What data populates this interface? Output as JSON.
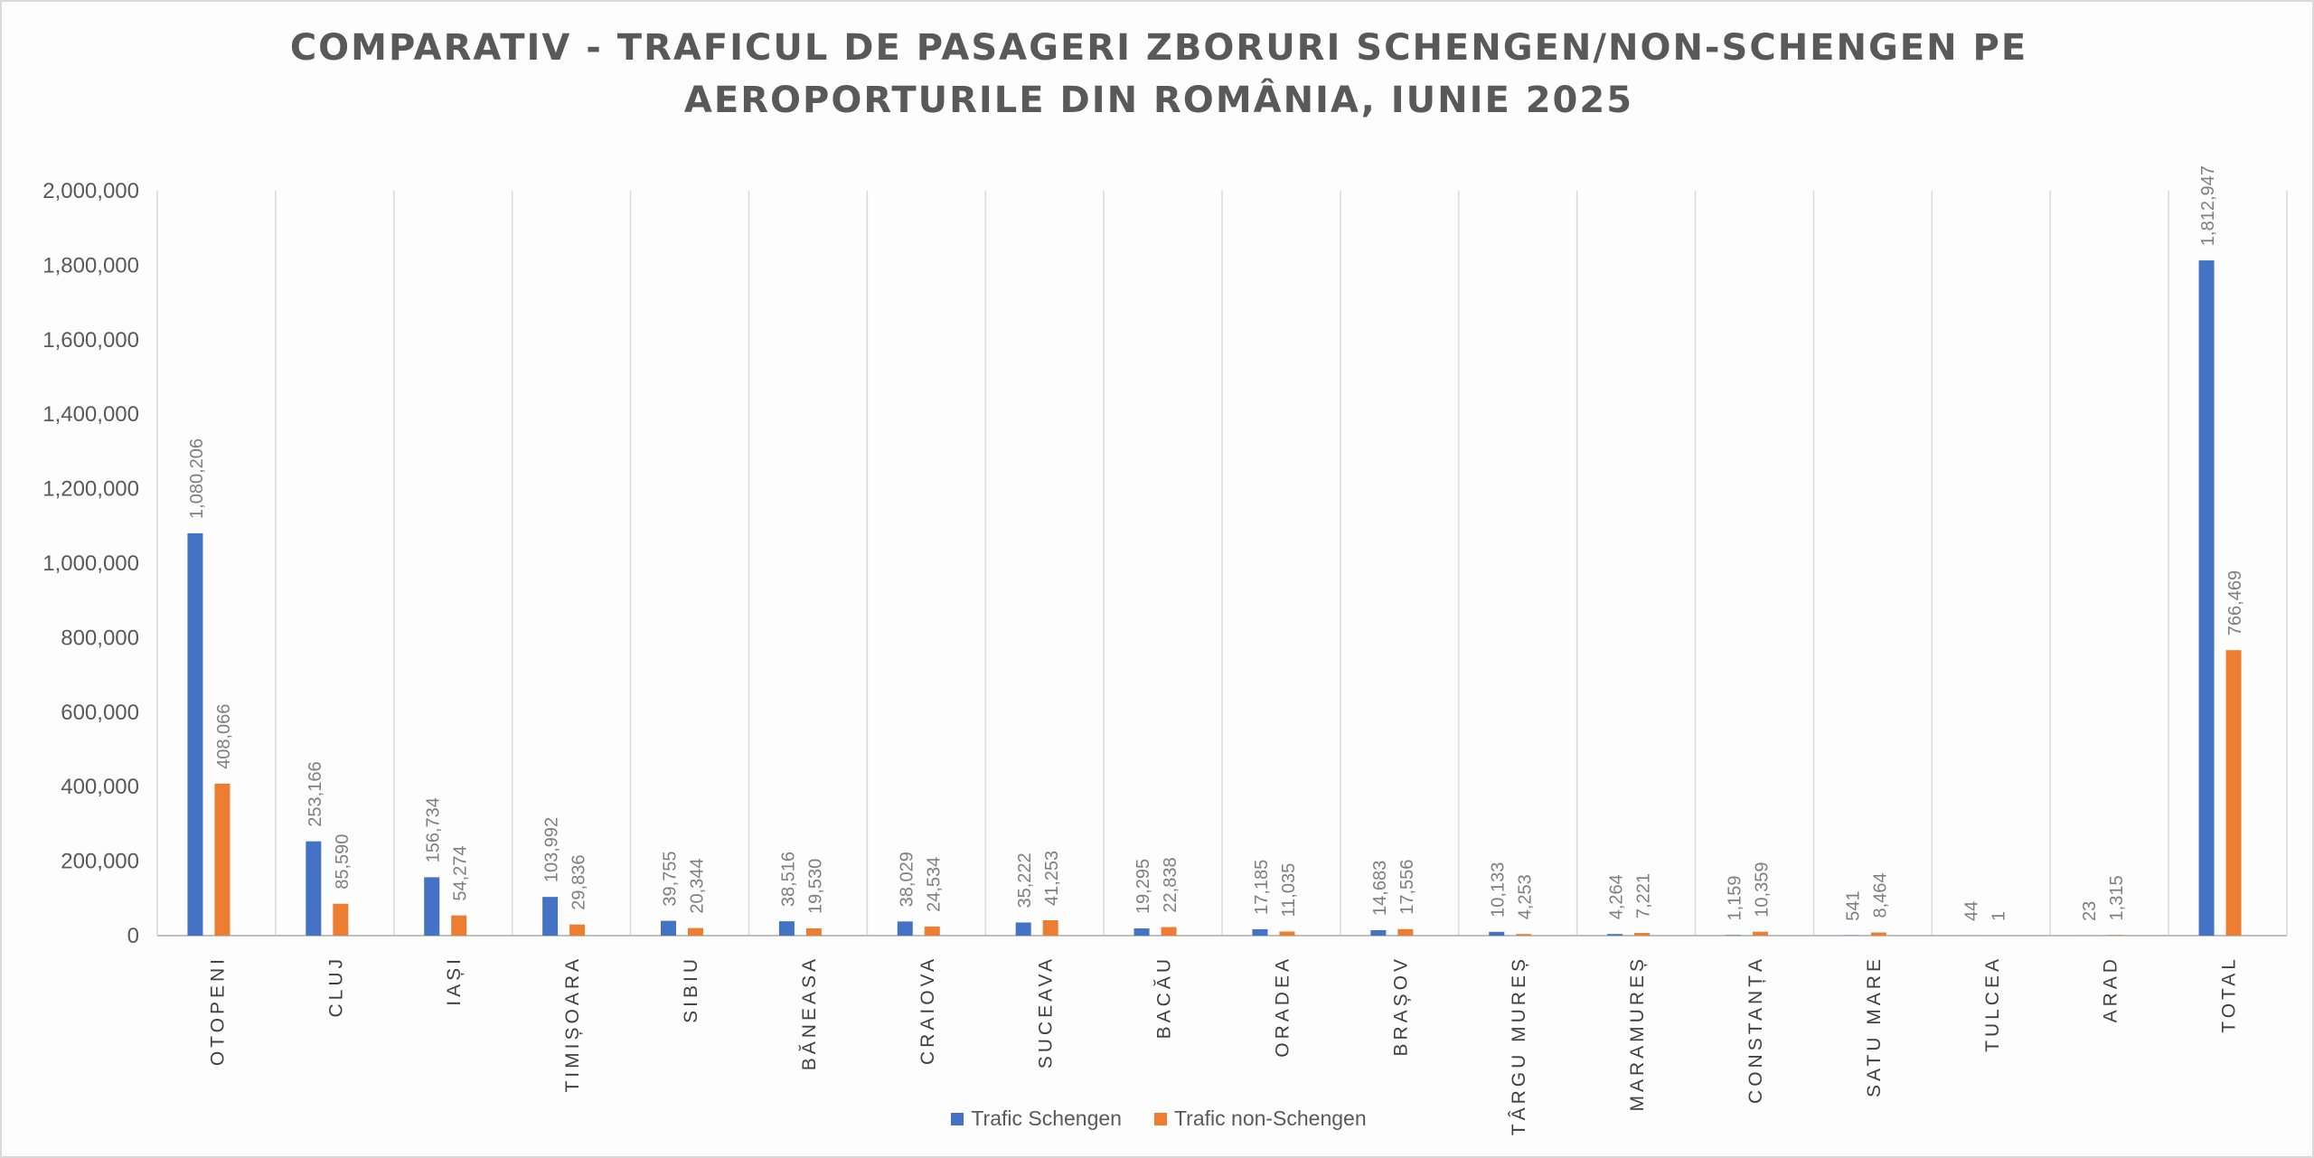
{
  "chart_data": {
    "type": "bar",
    "title_lines": [
      "COMPARATIV - TRAFICUL DE PASAGERI ZBORURI SCHENGEN/NON-SCHENGEN PE",
      "AEROPORTURILE DIN ROMÂNIA, IUNIE 2025"
    ],
    "categories": [
      "OTOPENI",
      "CLUJ",
      "IAȘI",
      "TIMIȘOARA",
      "SIBIU",
      "BĂNEASA",
      "CRAIOVA",
      "SUCEAVA",
      "BACĂU",
      "ORADEA",
      "BRAȘOV",
      "TÂRGU MUREȘ",
      "MARAMUREȘ",
      "CONSTANȚA",
      "SATU MARE",
      "TULCEA",
      "ARAD",
      "TOTAL"
    ],
    "series": [
      {
        "name": "Trafic Schengen",
        "color": "#4472c4",
        "values": [
          1080206,
          253166,
          156734,
          103992,
          39755,
          38516,
          38029,
          35222,
          19295,
          17185,
          14683,
          10133,
          4264,
          1159,
          541,
          44,
          23,
          1812947
        ],
        "labels": [
          "1,080,206",
          "253,166",
          "156,734",
          "103,992",
          "39,755",
          "38,516",
          "38,029",
          "35,222",
          "19,295",
          "17,185",
          "14,683",
          "10,133",
          "4,264",
          "1,159",
          "541",
          "44",
          "23",
          "1,812,947"
        ]
      },
      {
        "name": "Trafic non-Schengen",
        "color": "#ed7d31",
        "values": [
          408066,
          85590,
          54274,
          29836,
          20344,
          19530,
          24534,
          41253,
          22838,
          11035,
          17556,
          4253,
          7221,
          10359,
          8464,
          1,
          1315,
          766469
        ],
        "labels": [
          "408,066",
          "85,590",
          "54,274",
          "29,836",
          "20,344",
          "19,530",
          "24,534",
          "41,253",
          "22,838",
          "11,035",
          "17,556",
          "4,253",
          "7,221",
          "10,359",
          "8,464",
          "1",
          "1,315",
          "766,469"
        ]
      }
    ],
    "ylim": [
      0,
      2000000
    ],
    "yticks": [
      0,
      200000,
      400000,
      600000,
      800000,
      1000000,
      1200000,
      1400000,
      1600000,
      1800000,
      2000000
    ],
    "ytick_labels": [
      "0",
      "200,000",
      "400,000",
      "600,000",
      "800,000",
      "1,000,000",
      "1,200,000",
      "1,400,000",
      "1,600,000",
      "1,800,000",
      "2,000,000"
    ],
    "grid": "vertical category separators",
    "legend_position": "bottom"
  }
}
